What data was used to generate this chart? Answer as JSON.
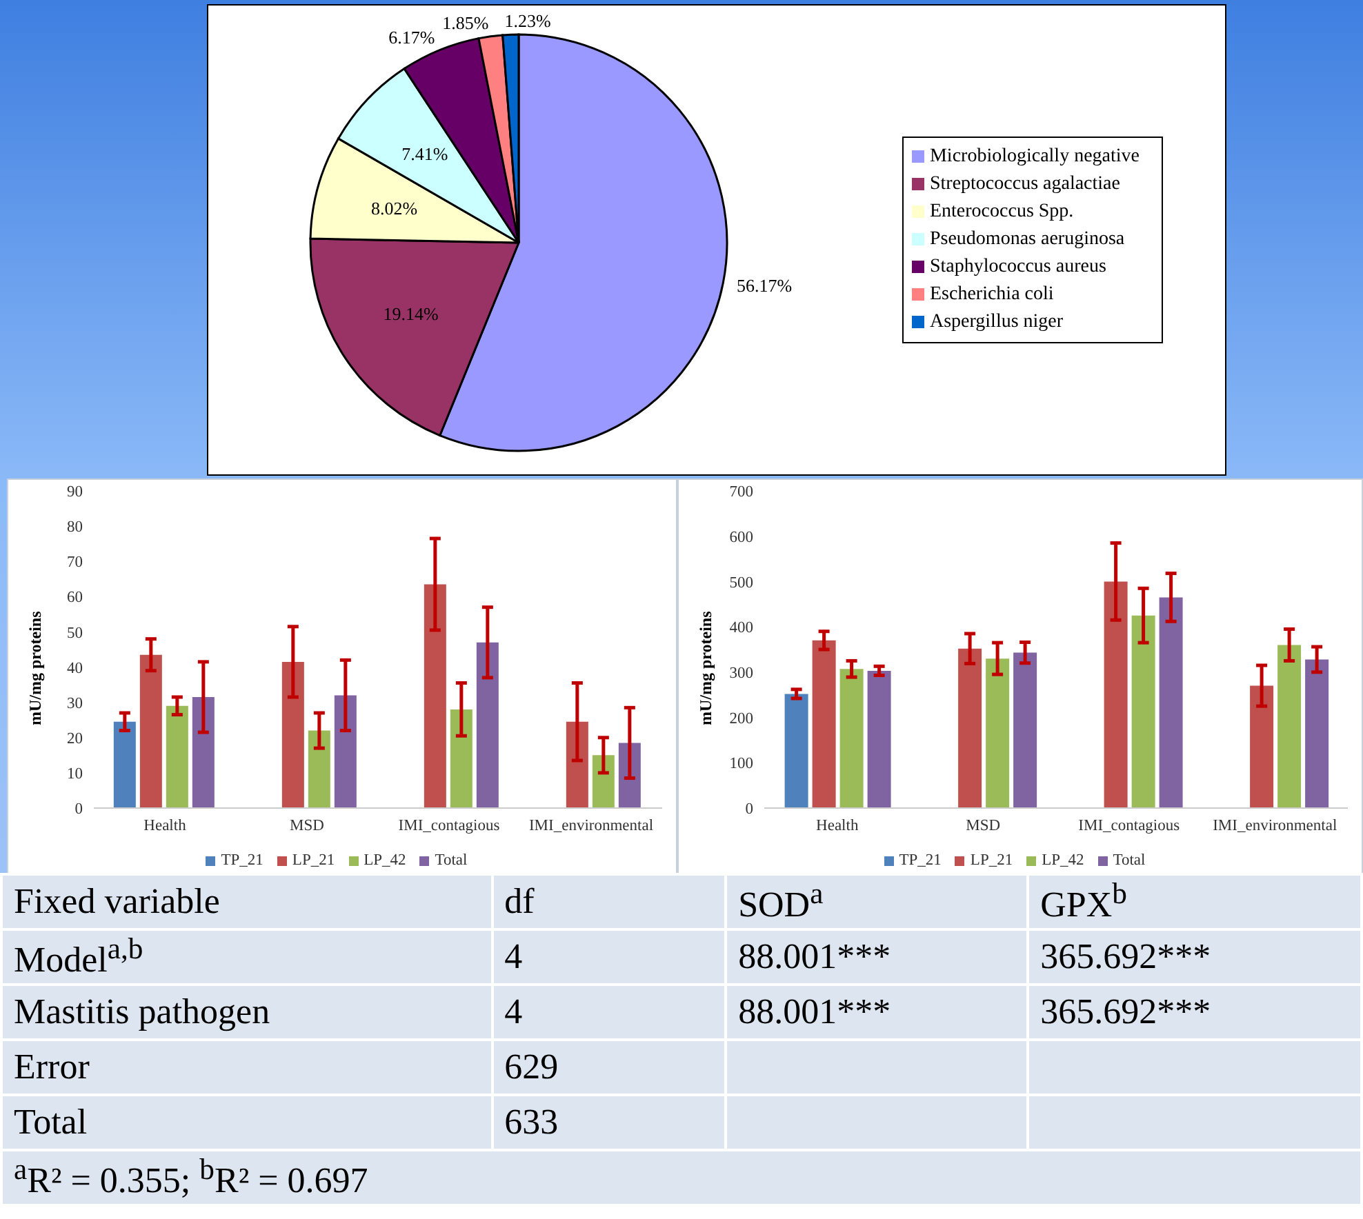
{
  "chart_data": [
    {
      "type": "pie",
      "categories": [
        "Microbiologically negative",
        "Streptococcus agalactiae",
        "Enterococcus Spp.",
        "Pseudomonas aeruginosa",
        "Staphylococcus aureus",
        "Escherichia coli",
        "Aspergillus niger"
      ],
      "values": [
        56.17,
        19.14,
        8.02,
        7.41,
        6.17,
        1.85,
        1.23
      ],
      "colors": [
        "#9999ff",
        "#993366",
        "#ffffcc",
        "#ccffff",
        "#660066",
        "#ff8080",
        "#0066cc"
      ],
      "value_labels": [
        "56.17%",
        "19.14%",
        "8.02%",
        "7.41%",
        "6.17%",
        "1.85%",
        "1.23%"
      ],
      "legend": "right"
    },
    {
      "type": "bar",
      "categories": [
        "Health",
        "MSD",
        "IMI_contagious",
        "IMI_environmental"
      ],
      "ylabel": "mU/mg proteins",
      "ylim": [
        0,
        90
      ],
      "yticks": [
        0,
        10,
        20,
        30,
        40,
        50,
        60,
        70,
        80,
        90
      ],
      "legend": "bottom",
      "series": [
        {
          "name": "TP_21",
          "color": "#4f81bd",
          "values": [
            24.5,
            null,
            null,
            null
          ],
          "errors": [
            2.5,
            null,
            null,
            null
          ]
        },
        {
          "name": "LP_21",
          "color": "#c0504d",
          "values": [
            43.5,
            41.5,
            63.5,
            24.5
          ],
          "errors": [
            4.5,
            10,
            13,
            11
          ]
        },
        {
          "name": "LP_42",
          "color": "#9bbb59",
          "values": [
            29,
            22,
            28,
            15
          ],
          "errors": [
            2.5,
            5,
            7.5,
            5
          ]
        },
        {
          "name": "Total",
          "color": "#8064a2",
          "values": [
            31.5,
            32,
            47,
            18.5
          ],
          "errors": [
            10,
            10,
            10,
            10
          ]
        }
      ]
    },
    {
      "type": "bar",
      "categories": [
        "Health",
        "MSD",
        "IMI_contagious",
        "IMI_environmental"
      ],
      "ylabel": "mU/mg proteins",
      "ylim": [
        0,
        700
      ],
      "yticks": [
        0,
        100,
        200,
        300,
        400,
        500,
        600,
        700
      ],
      "legend": "bottom",
      "series": [
        {
          "name": "TP_21",
          "color": "#4f81bd",
          "values": [
            252,
            null,
            null,
            null
          ],
          "errors": [
            10,
            null,
            null,
            null
          ]
        },
        {
          "name": "LP_21",
          "color": "#c0504d",
          "values": [
            370,
            352,
            500,
            270
          ],
          "errors": [
            20,
            33,
            85,
            45
          ]
        },
        {
          "name": "LP_42",
          "color": "#9bbb59",
          "values": [
            307,
            330,
            425,
            360
          ],
          "errors": [
            18,
            35,
            60,
            35
          ]
        },
        {
          "name": "Total",
          "color": "#8064a2",
          "values": [
            303,
            343,
            465,
            328
          ],
          "errors": [
            10,
            23,
            53,
            28
          ]
        }
      ]
    },
    {
      "type": "other",
      "categories": [
        "Fixed variable",
        "df",
        "SOD$^{a}$",
        "GPX$^{b}$"
      ],
      "annotations": [
        "Model$^{a,b}$",
        "4",
        "88.001***",
        "365.692***",
        "Mastitis pathogen",
        "4",
        "88.001***",
        "365.692***",
        "Error",
        "629",
        null,
        null,
        "Total",
        "633",
        null,
        null,
        "$^{a}$R² = 0.355; $^{b}$R² = 0.697"
      ]
    }
  ]
}
